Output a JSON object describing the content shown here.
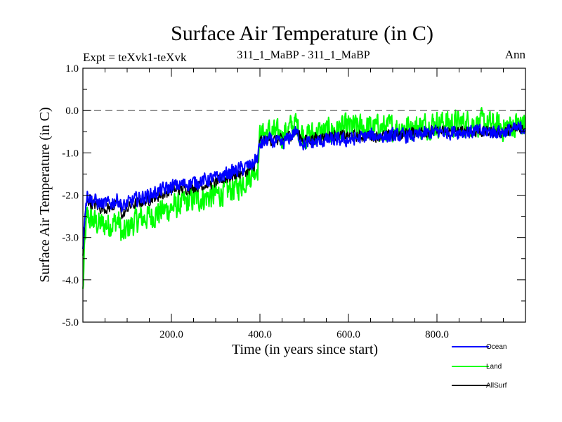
{
  "chart_data": {
    "type": "line",
    "title": "Surface Air Temperature (in C)",
    "subtitle_left": "Expt = teXvk1-teXvk",
    "subtitle_center": "311_1_MaBP - 311_1_MaBP",
    "subtitle_right": "Ann",
    "xlabel": "Time (in years since start)",
    "ylabel": "Surface Air Temperature (in C)",
    "xlim": [
      0,
      1000
    ],
    "ylim": [
      -5,
      1
    ],
    "x_ticks": [
      200,
      400,
      600,
      800
    ],
    "x_tick_labels": [
      "200.0",
      "400.0",
      "600.0",
      "800.0"
    ],
    "y_ticks": [
      1,
      0,
      -1,
      -2,
      -3,
      -4,
      -5
    ],
    "y_tick_labels": [
      "1.0",
      "0.0",
      "-1.0",
      "-2.0",
      "-3.0",
      "-4.0",
      "-5.0"
    ],
    "reference_line": 0,
    "legend_position": "bottom-right, outside plot",
    "series": [
      {
        "name": "Ocean",
        "color": "#0000ff",
        "x": [
          0,
          5,
          10,
          20,
          40,
          60,
          80,
          90,
          100,
          120,
          150,
          200,
          250,
          300,
          350,
          380,
          395,
          400,
          420,
          450,
          480,
          500,
          550,
          600,
          650,
          700,
          750,
          800,
          850,
          900,
          950,
          1000
        ],
        "values": [
          -3.2,
          -2.3,
          -2.0,
          -2.1,
          -2.2,
          -2.2,
          -2.1,
          -2.3,
          -2.2,
          -2.1,
          -2.0,
          -1.8,
          -1.7,
          -1.6,
          -1.4,
          -1.3,
          -1.1,
          -0.8,
          -0.7,
          -0.8,
          -0.5,
          -0.8,
          -0.7,
          -0.7,
          -0.6,
          -0.6,
          -0.6,
          -0.5,
          -0.5,
          -0.5,
          -0.5,
          -0.4
        ]
      },
      {
        "name": "Land",
        "color": "#00ff00",
        "x": [
          0,
          5,
          10,
          20,
          40,
          60,
          80,
          90,
          100,
          120,
          150,
          200,
          250,
          300,
          350,
          380,
          395,
          400,
          420,
          450,
          480,
          500,
          550,
          600,
          650,
          700,
          750,
          800,
          850,
          900,
          950,
          1000
        ],
        "values": [
          -4.3,
          -3.0,
          -2.5,
          -2.6,
          -2.7,
          -2.7,
          -2.6,
          -3.0,
          -2.8,
          -2.6,
          -2.5,
          -2.3,
          -2.1,
          -2.0,
          -1.8,
          -1.5,
          -1.3,
          -0.6,
          -0.5,
          -0.6,
          -0.3,
          -0.6,
          -0.5,
          -0.4,
          -0.4,
          -0.4,
          -0.4,
          -0.3,
          -0.3,
          -0.3,
          -0.4,
          -0.3
        ]
      },
      {
        "name": "AllSurf",
        "color": "#000000",
        "x": [
          0,
          5,
          10,
          20,
          40,
          60,
          80,
          90,
          100,
          120,
          150,
          200,
          250,
          300,
          350,
          380,
          395,
          400,
          420,
          450,
          480,
          500,
          550,
          600,
          650,
          700,
          750,
          800,
          850,
          900,
          950,
          1000
        ],
        "values": [
          -3.5,
          -2.5,
          -2.1,
          -2.2,
          -2.3,
          -2.3,
          -2.2,
          -2.5,
          -2.3,
          -2.2,
          -2.1,
          -1.9,
          -1.8,
          -1.7,
          -1.5,
          -1.4,
          -1.2,
          -0.7,
          -0.7,
          -0.7,
          -0.5,
          -0.7,
          -0.6,
          -0.6,
          -0.6,
          -0.6,
          -0.5,
          -0.5,
          -0.5,
          -0.5,
          -0.5,
          -0.4
        ]
      }
    ]
  }
}
